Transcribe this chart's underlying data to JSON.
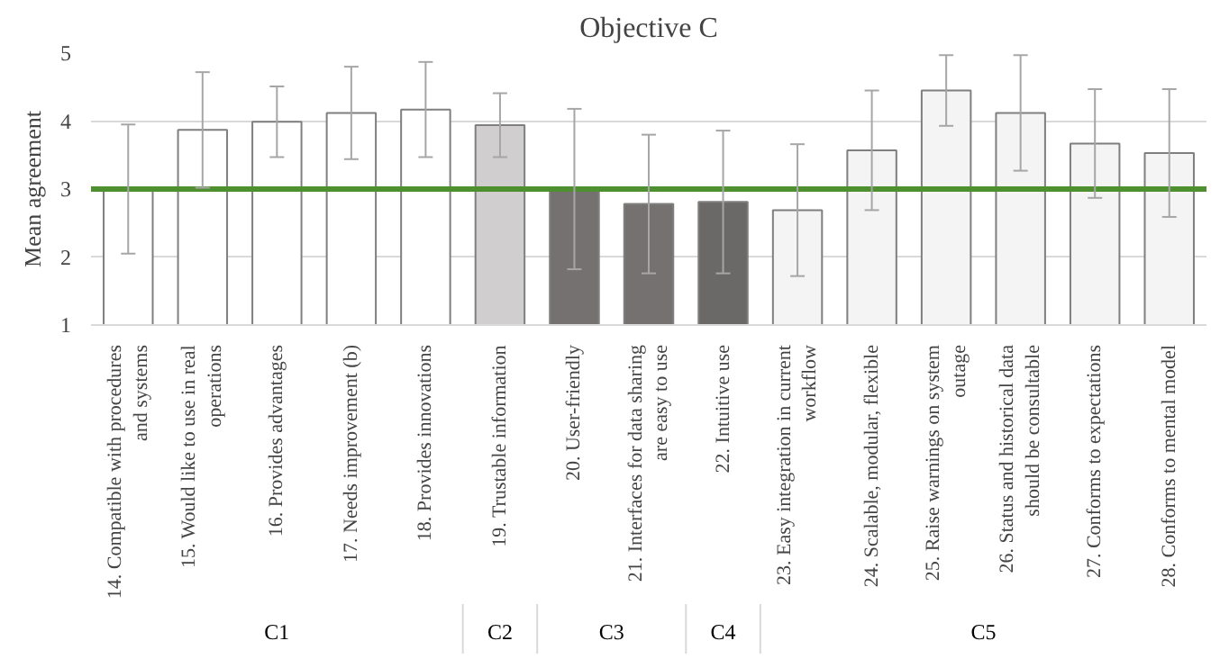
{
  "chart_data": {
    "type": "bar",
    "title": "Objective C",
    "ylabel": "Mean agreement",
    "categories": [
      "14. Compatible with procedures and systems",
      "15. Would like to use in real operations",
      "16. Provides advantages",
      "17. Needs improvement (b)",
      "18. Provides innovations",
      "19. Trustable information",
      "20. User-friendly",
      "21. Interfaces for data sharing are easy to use",
      "22. Intuitive use",
      "23. Easy integration in current workflow",
      "24. Scalable, modular, flexible",
      "25. Raise warnings on system outage",
      "26. Status and historical data should be consultable",
      "27. Conforms to expectations",
      "28. Conforms to mental model"
    ],
    "values": [
      3.0,
      3.87,
      3.99,
      4.12,
      4.17,
      3.94,
      3.0,
      2.78,
      2.81,
      2.69,
      3.57,
      4.45,
      4.12,
      3.67,
      3.53
    ],
    "errors": [
      0.95,
      0.85,
      0.52,
      0.68,
      0.7,
      0.47,
      1.18,
      1.02,
      1.05,
      0.97,
      0.88,
      0.52,
      0.85,
      0.8,
      0.94
    ],
    "colors": [
      "#ffffff",
      "#ffffff",
      "#ffffff",
      "#ffffff",
      "#ffffff",
      "#d0cece",
      "#767171",
      "#767171",
      "#6b6868",
      "#f4f4f4",
      "#f4f4f4",
      "#f4f4f4",
      "#f4f4f4",
      "#f4f4f4",
      "#f4f4f4"
    ],
    "annotations": [
      "C1",
      "C2",
      "C3",
      "C4",
      "C5"
    ],
    "ylim": [
      1,
      5
    ],
    "yticks": [
      1,
      2,
      3,
      4,
      5
    ],
    "grid": "y",
    "ref_lines": [
      {
        "axis": "y",
        "value": 3,
        "color": "#4e8f2f"
      }
    ]
  }
}
